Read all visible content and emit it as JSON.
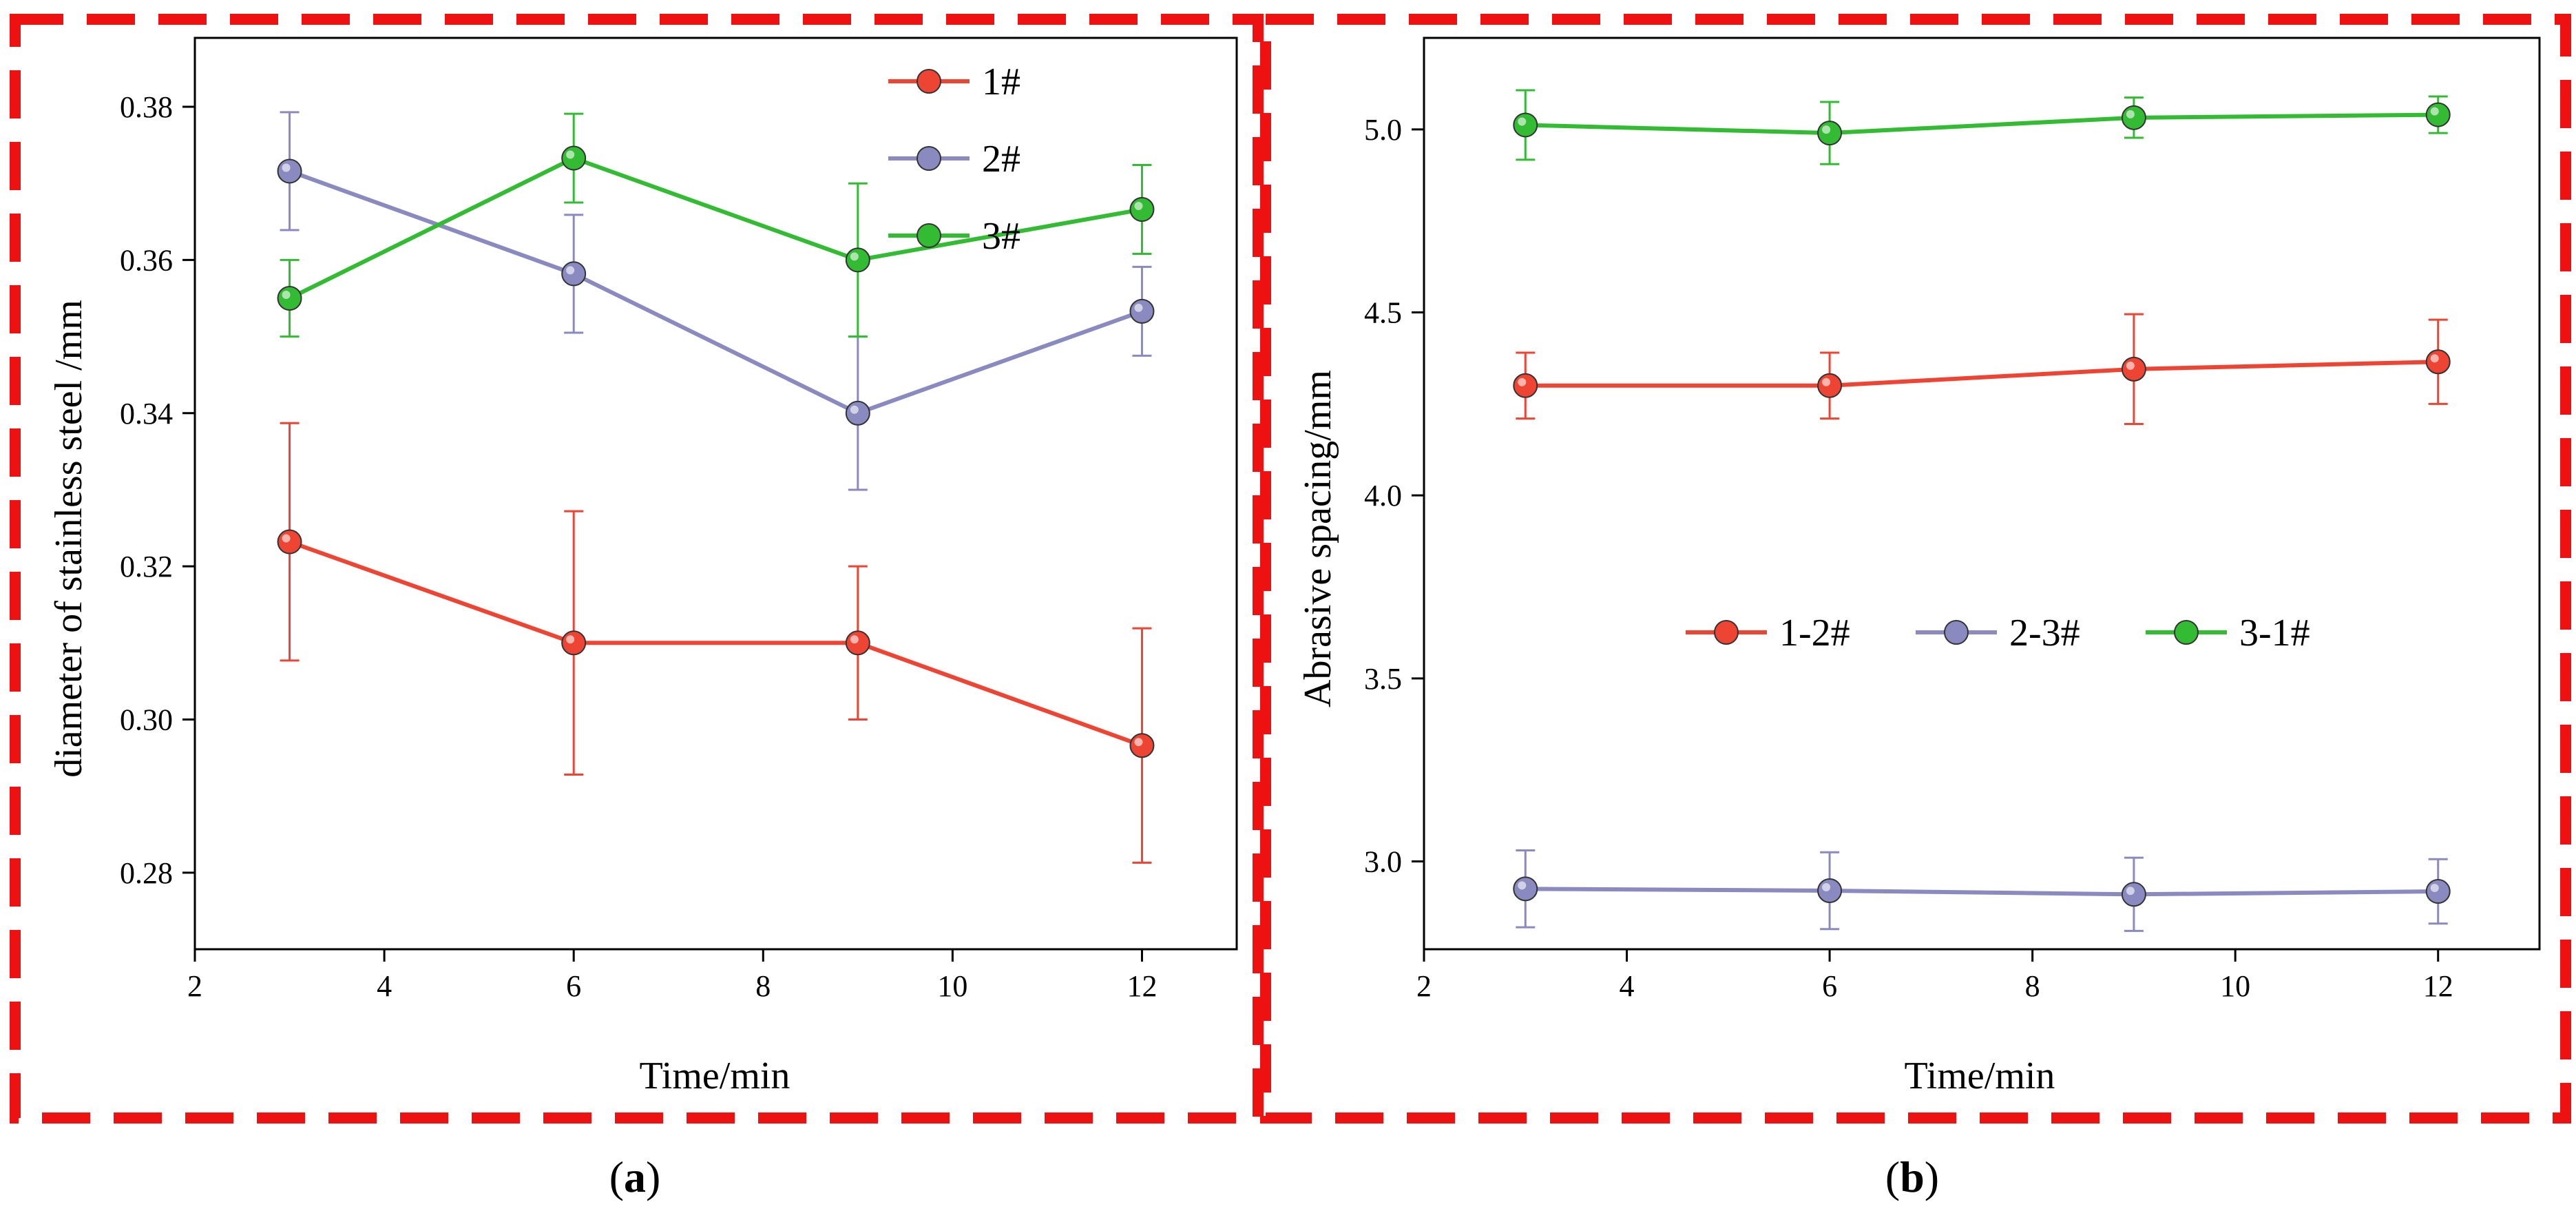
{
  "colors": {
    "red": "#ee4433",
    "blue": "#8a8ac0",
    "green": "#33bb33",
    "frame": "#ee1111"
  },
  "chart_data": [
    {
      "type": "line",
      "panel": "a",
      "caption_letter": "a",
      "xlabel": "Time/min",
      "ylabel": "diameter of stainless steel /mm",
      "xlim": [
        2,
        13
      ],
      "ylim": [
        0.27,
        0.389
      ],
      "xticks": [
        2,
        4,
        6,
        8,
        10,
        12
      ],
      "yticks": [
        0.28,
        0.3,
        0.32,
        0.34,
        0.36,
        0.38
      ],
      "x": [
        3,
        6,
        9,
        12
      ],
      "legend_position": "top-right",
      "series": [
        {
          "name": "1#",
          "color": "#ee4433",
          "values": [
            0.3232,
            0.31,
            0.31,
            0.2966
          ],
          "errors": [
            0.0155,
            0.0172,
            0.01,
            0.0153
          ]
        },
        {
          "name": "2#",
          "color": "#8a8ac0",
          "values": [
            0.3716,
            0.3582,
            0.34,
            0.3533
          ],
          "errors": [
            0.0077,
            0.0077,
            0.01,
            0.0058
          ]
        },
        {
          "name": "3#",
          "color": "#33bb33",
          "values": [
            0.355,
            0.3733,
            0.36,
            0.3666
          ],
          "errors": [
            0.005,
            0.0058,
            0.01,
            0.0058
          ]
        }
      ]
    },
    {
      "type": "line",
      "panel": "b",
      "caption_letter": "b",
      "xlabel": "Time/min",
      "ylabel": "Abrasive spacing/mm",
      "xlim": [
        2,
        13
      ],
      "ylim": [
        2.76,
        5.25
      ],
      "xticks": [
        2,
        4,
        6,
        8,
        10,
        12
      ],
      "yticks": [
        3.0,
        3.5,
        4.0,
        4.5,
        5.0
      ],
      "x": [
        3,
        6,
        9,
        12
      ],
      "legend_position": "center",
      "series": [
        {
          "name": "1-2#",
          "color": "#ee4433",
          "values": [
            4.3,
            4.3,
            4.345,
            4.365
          ],
          "errors": [
            0.09,
            0.09,
            0.15,
            0.115
          ]
        },
        {
          "name": "2-3#",
          "color": "#8a8ac0",
          "values": [
            2.925,
            2.92,
            2.91,
            2.918
          ],
          "errors": [
            0.105,
            0.105,
            0.1,
            0.088
          ]
        },
        {
          "name": "3-1#",
          "color": "#33bb33",
          "values": [
            5.012,
            4.99,
            5.032,
            5.04
          ],
          "errors": [
            0.095,
            0.085,
            0.055,
            0.05
          ]
        }
      ]
    }
  ]
}
